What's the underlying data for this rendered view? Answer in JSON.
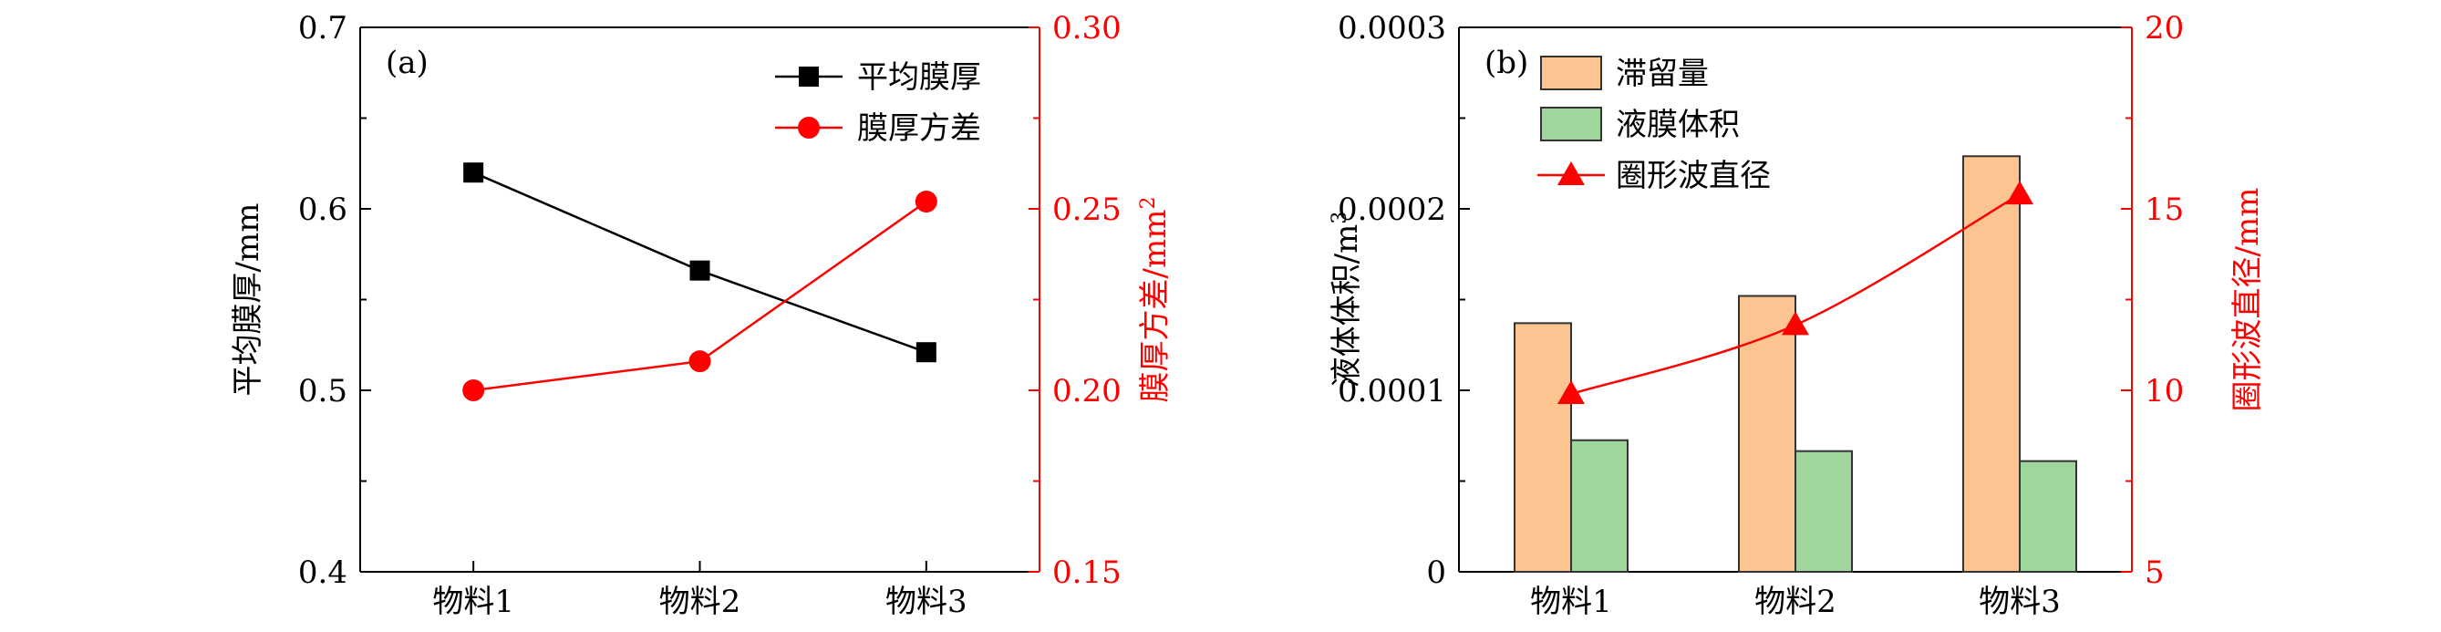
{
  "chart_data": [
    {
      "type": "line",
      "panel_label": "(a)",
      "categories": [
        "物料1",
        "物料2",
        "物料3"
      ],
      "y_left": {
        "label": "平均膜厚/mm",
        "range": [
          0.4,
          0.7
        ],
        "ticks": [
          "0.4",
          "0.5",
          "0.6",
          "0.7"
        ],
        "color": "#000000"
      },
      "y_right": {
        "label": "膜厚方差/mm",
        "label_sup": "2",
        "range": [
          0.15,
          0.3
        ],
        "ticks": [
          "0.15",
          "0.20",
          "0.25",
          "0.30"
        ],
        "color": "#ff0000"
      },
      "series": [
        {
          "name": "平均膜厚",
          "axis": "left",
          "color": "#000000",
          "marker": "square",
          "values": [
            0.62,
            0.566,
            0.521
          ]
        },
        {
          "name": "膜厚方差",
          "axis": "right",
          "color": "#ff0000",
          "marker": "circle",
          "values": [
            0.2,
            0.208,
            0.252
          ]
        }
      ],
      "legend": "top-right",
      "grid": false
    },
    {
      "type": "bar",
      "panel_label": "(b)",
      "categories": [
        "物料1",
        "物料2",
        "物料3"
      ],
      "y_left": {
        "label": "液体体积/m",
        "label_sup": "3",
        "range": [
          0,
          0.0003
        ],
        "ticks": [
          "0",
          "0.0001",
          "0.0002",
          "0.0003"
        ],
        "color": "#000000"
      },
      "y_right": {
        "label": "圈形波直径/mm",
        "range": [
          5,
          20
        ],
        "ticks": [
          "5",
          "10",
          "15",
          "20"
        ],
        "color": "#ff0000"
      },
      "series": [
        {
          "name": "滞留量",
          "type": "bar",
          "axis": "left",
          "color": "#fbc490",
          "values": [
            0.000137,
            0.000152,
            0.000229
          ]
        },
        {
          "name": "液膜体积",
          "type": "bar",
          "axis": "left",
          "color": "#9ed69c",
          "values": [
            7.25e-05,
            6.65e-05,
            6.1e-05
          ]
        },
        {
          "name": "圈形波直径",
          "type": "line",
          "axis": "right",
          "color": "#ff0000",
          "marker": "triangle",
          "values": [
            9.9,
            11.8,
            15.4
          ]
        }
      ],
      "legend": "top-left",
      "grid": false
    }
  ]
}
